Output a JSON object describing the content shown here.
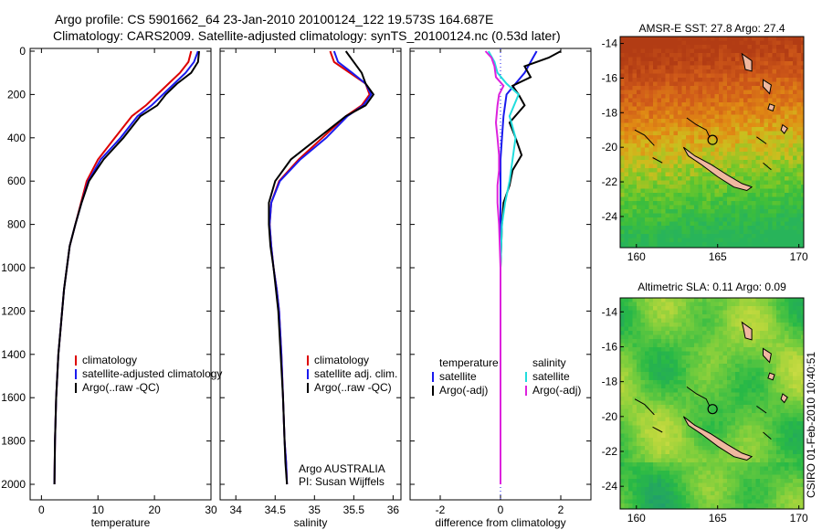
{
  "title_line1": "Argo profile: CS 5901662_64 23-Jan-2010 20100124_122 19.573S 164.687E",
  "title_line2": "Climatology: CARS2009. Satellite-adjusted climatology: synTS_20100124.nc (0.53d later)",
  "footer_stamp": "CSIRO 01-Feb-2010 10:40:51",
  "colors": {
    "climatology": "#dd0000",
    "satellite": "#1a1aee",
    "argo": "#000000",
    "argo_adj": "#dd22dd",
    "satellite_diff": "#22dddd"
  },
  "chart_data": [
    {
      "type": "line",
      "name": "temperature-panel",
      "xlabel": "temperature",
      "ylabel": "",
      "xlim": [
        -2,
        30
      ],
      "ylim": [
        2050,
        0
      ],
      "xticks": [
        0,
        10,
        20,
        30
      ],
      "yticks": [
        0,
        200,
        400,
        600,
        800,
        1000,
        1200,
        1400,
        1600,
        1800,
        2000
      ],
      "legend_labels": [
        "climatology",
        "satellite-adjusted climatology",
        "Argo(..raw -QC)"
      ],
      "series": [
        {
          "name": "climatology",
          "key": "climatology",
          "x": [
            26.5,
            26,
            24.5,
            22.5,
            20.5,
            18.5,
            16,
            13,
            10,
            8,
            7,
            6,
            5,
            4.5,
            4,
            3.5,
            3,
            2.6,
            2.4,
            2.3
          ],
          "y": [
            0,
            50,
            100,
            150,
            200,
            250,
            300,
            400,
            500,
            600,
            700,
            800,
            900,
            1000,
            1100,
            1250,
            1400,
            1600,
            1800,
            2000
          ]
        },
        {
          "name": "satellite-adjusted climatology",
          "key": "satellite",
          "x": [
            27.7,
            27,
            25.5,
            23.5,
            21.5,
            19.5,
            17,
            14,
            10.5,
            8.3,
            7.1,
            6,
            5,
            4.5,
            4,
            3.5,
            3,
            2.6,
            2.4,
            2.3
          ],
          "y": [
            0,
            50,
            100,
            150,
            200,
            250,
            300,
            400,
            500,
            600,
            700,
            800,
            900,
            1000,
            1100,
            1250,
            1400,
            1600,
            1800,
            2000
          ]
        },
        {
          "name": "Argo(..raw -QC)",
          "key": "argo",
          "x": [
            27.9,
            27.7,
            26.5,
            24,
            22,
            20.5,
            17.5,
            14.5,
            11,
            8.4,
            7.1,
            6,
            5,
            4.5,
            4,
            3.5,
            3,
            2.6,
            2.4,
            2.3
          ],
          "y": [
            0,
            50,
            100,
            150,
            200,
            250,
            300,
            400,
            500,
            600,
            700,
            800,
            900,
            1000,
            1100,
            1250,
            1400,
            1600,
            1800,
            2000
          ]
        }
      ]
    },
    {
      "type": "line",
      "name": "salinity-panel",
      "xlabel": "salinity",
      "ylabel": "",
      "xlim": [
        33.8,
        36.1
      ],
      "ylim": [
        2050,
        0
      ],
      "xticks": [
        34,
        34.5,
        35,
        35.5,
        36
      ],
      "xticklabels": [
        "34",
        "34.5",
        "35",
        "35.5",
        "36"
      ],
      "yticks": [
        0,
        200,
        400,
        600,
        800,
        1000,
        1200,
        1400,
        1600,
        1800,
        2000
      ],
      "legend_labels": [
        "climatology",
        "satellite adj. clim.",
        "Argo(..raw -QC)"
      ],
      "annotation": [
        "Argo AUSTRALIA",
        "PI: Susan Wijffels"
      ],
      "series": [
        {
          "name": "climatology",
          "key": "climatology",
          "x": [
            35.2,
            35.25,
            35.45,
            35.65,
            35.7,
            35.6,
            35.4,
            35.1,
            34.8,
            34.55,
            34.45,
            34.43,
            34.45,
            34.48,
            34.52,
            34.55,
            34.58,
            34.6,
            34.62,
            34.64,
            34.65
          ],
          "y": [
            0,
            50,
            100,
            150,
            200,
            250,
            300,
            400,
            500,
            600,
            700,
            800,
            900,
            1000,
            1100,
            1200,
            1400,
            1600,
            1800,
            1900,
            2000
          ]
        },
        {
          "name": "satellite adj. clim.",
          "key": "satellite",
          "x": [
            35.25,
            35.3,
            35.48,
            35.65,
            35.72,
            35.62,
            35.42,
            35.15,
            34.82,
            34.56,
            34.45,
            34.43,
            34.45,
            34.48,
            34.52,
            34.55,
            34.58,
            34.6,
            34.62,
            34.64,
            34.65
          ],
          "y": [
            0,
            50,
            100,
            150,
            200,
            250,
            300,
            400,
            500,
            600,
            700,
            800,
            900,
            1000,
            1100,
            1200,
            1400,
            1600,
            1800,
            1900,
            2000
          ]
        },
        {
          "name": "Argo(..raw -QC)",
          "key": "argo",
          "x": [
            35.4,
            35.5,
            35.6,
            35.65,
            35.75,
            35.65,
            35.4,
            35.05,
            34.7,
            34.5,
            34.42,
            34.42,
            34.44,
            34.48,
            34.51,
            34.54,
            34.57,
            34.6,
            34.62,
            34.63,
            34.65
          ],
          "y": [
            0,
            50,
            100,
            150,
            200,
            250,
            300,
            400,
            500,
            600,
            700,
            800,
            900,
            1000,
            1100,
            1200,
            1400,
            1600,
            1800,
            1900,
            2000
          ]
        }
      ]
    },
    {
      "type": "line",
      "name": "difference-panel",
      "xlabel": "difference from climatology",
      "ylabel": "",
      "xlim": [
        -3,
        3
      ],
      "ylim": [
        2050,
        0
      ],
      "xticks": [
        -2,
        0,
        2
      ],
      "yticks": [
        0,
        200,
        400,
        600,
        800,
        1000,
        1200,
        1400,
        1600,
        1800,
        2000
      ],
      "legend_headers": [
        "temperature",
        "salinity"
      ],
      "legend_labels": [
        "satellite",
        "Argo(-adj)",
        "satellite",
        "Argo(-adj)"
      ],
      "series": [
        {
          "name": "temperature satellite",
          "key": "satellite",
          "x": [
            1.2,
            1,
            0.8,
            0.5,
            0.2,
            0.1,
            0.05,
            0,
            0,
            0,
            0,
            0,
            0,
            0
          ],
          "y": [
            0,
            50,
            100,
            150,
            200,
            300,
            400,
            500,
            600,
            700,
            800,
            1000,
            1500,
            2000
          ]
        },
        {
          "name": "temperature Argo(-adj)",
          "key": "argo",
          "x": [
            2,
            1.6,
            0.8,
            1,
            0.4,
            0.6,
            0.8,
            0.3,
            0.5,
            0.7,
            0.4,
            0.3,
            0.1,
            0.05,
            0,
            0,
            0
          ],
          "y": [
            0,
            30,
            70,
            120,
            160,
            200,
            250,
            330,
            400,
            480,
            550,
            620,
            700,
            800,
            1000,
            1500,
            2000
          ]
        },
        {
          "name": "salinity satellite",
          "key": "satellite_diff",
          "x": [
            -0.4,
            -0.2,
            -0.1,
            0.2,
            0.6,
            0.3,
            0.5,
            0.4,
            0.3,
            0.15,
            0.05,
            0,
            0,
            0
          ],
          "y": [
            0,
            50,
            100,
            150,
            200,
            300,
            400,
            500,
            600,
            700,
            800,
            1000,
            1500,
            2000
          ]
        },
        {
          "name": "salinity Argo(-adj)",
          "key": "argo_adj",
          "x": [
            -0.5,
            -0.3,
            -0.2,
            -0.15,
            0.1,
            -0.05,
            -0.1,
            -0.15,
            -0.1,
            -0.05,
            -0.05,
            -0.1,
            -0.1,
            -0.05,
            0,
            0,
            0
          ],
          "y": [
            0,
            30,
            70,
            120,
            160,
            200,
            250,
            330,
            400,
            480,
            550,
            620,
            700,
            800,
            1000,
            1500,
            2000
          ]
        }
      ]
    },
    {
      "type": "heatmap",
      "name": "amsre-sst-map",
      "title": "AMSR-E SST: 27.8 Argo: 27.4",
      "xlim": [
        159,
        170.3
      ],
      "ylim": [
        -25.8,
        -13.6
      ],
      "xticks": [
        160,
        165,
        170
      ],
      "yticks": [
        -14,
        -16,
        -18,
        -20,
        -22,
        -24
      ],
      "argo_position": {
        "lon": 164.687,
        "lat": -19.573
      }
    },
    {
      "type": "heatmap",
      "name": "altimetric-sla-map",
      "title": "Altimetric SLA: 0.11 Argo: 0.09",
      "xlim": [
        159,
        170.3
      ],
      "ylim": [
        -25.3,
        -13.2
      ],
      "xticks": [
        160,
        165,
        170
      ],
      "yticks": [
        -14,
        -16,
        -18,
        -20,
        -22,
        -24
      ],
      "argo_position": {
        "lon": 164.687,
        "lat": -19.573
      }
    }
  ]
}
